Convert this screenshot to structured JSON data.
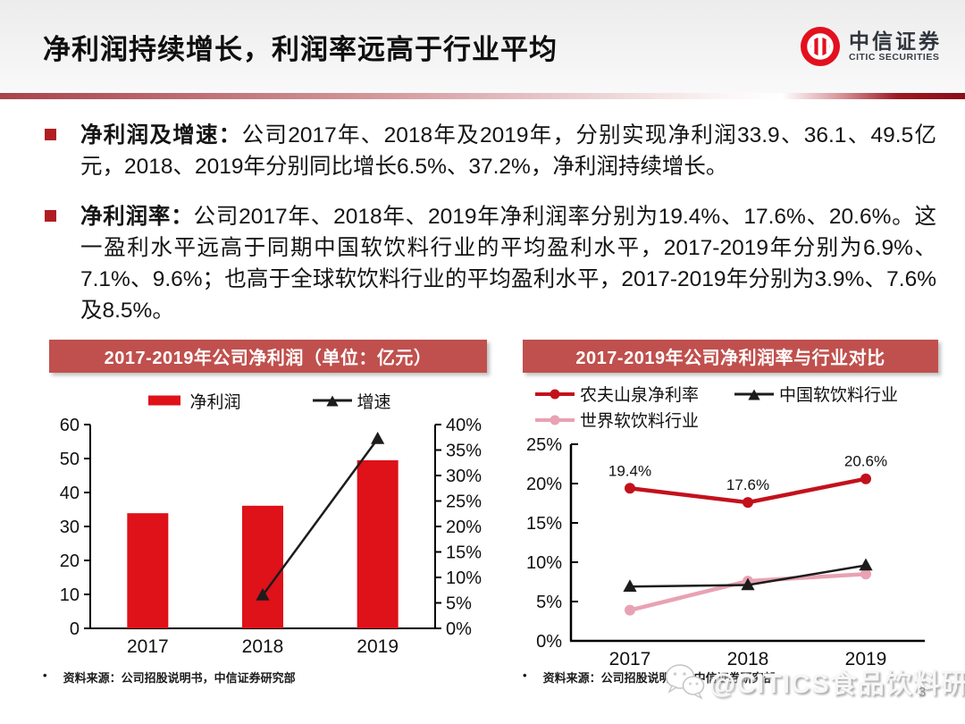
{
  "header": {
    "title": "净利润持续增长，利润率远高于行业平均",
    "logo": {
      "cn": "中信证券",
      "en": "CITIC SECURITIES"
    }
  },
  "bullets": [
    {
      "label": "净利润及增速：",
      "text": "公司2017年、2018年及2019年，分别实现净利润33.9、36.1、49.5亿元，2018、2019年分别同比增长6.5%、37.2%，净利润持续增长。"
    },
    {
      "label": "净利润率：",
      "text": "公司2017年、2018年、2019年净利润率分别为19.4%、17.6%、20.6%。这一盈利水平远高于同期中国软饮料行业的平均盈利水平，2017-2019年分别为6.9%、7.1%、9.6%；也高于全球软饮料行业的平均盈利水平，2017-2019年分别为3.9%、7.6%及8.5%。"
    }
  ],
  "panels": {
    "left": {
      "title": "2017-2019年公司净利润（单位：亿元）",
      "source_bullet": "•",
      "source": "资料来源：公司招股说明书，中信证券研究部"
    },
    "right": {
      "title": "2017-2019年公司净利润率与行业对比",
      "source_bullet": "•",
      "source": "资料来源：公司招股说明书，中信证券研究部"
    }
  },
  "watermark": {
    "text": "@CITICS食品饮料研究"
  },
  "page_number": "3",
  "colors": {
    "panel_header": "#c0504d",
    "bar_red": "#df1119",
    "line_red": "#c3111c",
    "pink_series": "#e8a2b3",
    "black_series": "#1c1c1c",
    "bullet_marker": "#b01e23",
    "logo_red": "#e3101e"
  },
  "chart_data": [
    {
      "type": "bar",
      "title": "2017-2019年公司净利润（单位：亿元）",
      "categories": [
        "2017",
        "2018",
        "2019"
      ],
      "series": [
        {
          "name": "净利润",
          "type": "bar",
          "axis": "left",
          "color": "#df1119",
          "values": [
            33.9,
            36.1,
            49.5
          ]
        },
        {
          "name": "增速",
          "type": "line",
          "axis": "right",
          "color": "#1c1c1c",
          "marker": "triangle",
          "values": [
            null,
            6.5,
            37.2
          ]
        }
      ],
      "left_axis": {
        "min": 0,
        "max": 60,
        "step": 10,
        "suffix": ""
      },
      "right_axis": {
        "min": 0,
        "max": 40,
        "step": 5,
        "suffix": "%"
      },
      "legend_position": "top",
      "grid": false
    },
    {
      "type": "line",
      "title": "2017-2019年公司净利润率与行业对比",
      "categories": [
        "2017",
        "2018",
        "2019"
      ],
      "series": [
        {
          "name": "农夫山泉净利率",
          "color": "#c3111c",
          "marker": "circle",
          "values": [
            19.4,
            17.6,
            20.6
          ],
          "point_labels": [
            "19.4%",
            "17.6%",
            "20.6%"
          ]
        },
        {
          "name": "中国软饮料行业",
          "color": "#1c1c1c",
          "marker": "triangle",
          "values": [
            6.9,
            7.1,
            9.6
          ]
        },
        {
          "name": "世界软饮料行业",
          "color": "#e8a2b3",
          "marker": "circle",
          "values": [
            3.9,
            7.6,
            8.5
          ]
        }
      ],
      "y_axis": {
        "min": 0,
        "max": 25,
        "step": 5,
        "suffix": "%"
      },
      "legend_position": "top",
      "grid": false
    }
  ]
}
